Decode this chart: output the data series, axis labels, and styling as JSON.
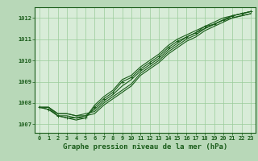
{
  "background_color": "#b8d8b8",
  "plot_bg_color": "#d8ecd8",
  "grid_color": "#99cc99",
  "line_color": "#1a5c1a",
  "xlabel": "Graphe pression niveau de la mer (hPa)",
  "ylabel_ticks": [
    1007,
    1008,
    1009,
    1010,
    1011,
    1012
  ],
  "xlim": [
    -0.5,
    23.5
  ],
  "ylim": [
    1006.6,
    1012.5
  ],
  "series": [
    [
      1007.8,
      1007.8,
      1007.5,
      1007.5,
      1007.4,
      1007.4,
      1007.5,
      1007.9,
      1008.2,
      1008.5,
      1008.8,
      1009.3,
      1009.6,
      1009.9,
      1010.3,
      1010.6,
      1010.9,
      1011.1,
      1011.4,
      1011.6,
      1011.8,
      1012.0,
      1012.1,
      1012.2
    ],
    [
      1007.8,
      1007.8,
      1007.5,
      1007.5,
      1007.4,
      1007.5,
      1007.6,
      1008.0,
      1008.3,
      1008.6,
      1008.9,
      1009.4,
      1009.7,
      1010.0,
      1010.4,
      1010.7,
      1011.0,
      1011.2,
      1011.5,
      1011.7,
      1011.9,
      1012.1,
      1012.2,
      1012.3
    ],
    [
      1007.8,
      1007.8,
      1007.4,
      1007.4,
      1007.3,
      1007.4,
      1007.7,
      1008.1,
      1008.4,
      1008.8,
      1009.1,
      1009.5,
      1009.8,
      1010.1,
      1010.5,
      1010.8,
      1011.1,
      1011.3,
      1011.5,
      1011.7,
      1011.9,
      1012.0,
      1012.1,
      1012.2
    ],
    [
      1007.8,
      1007.7,
      1007.4,
      1007.3,
      1007.3,
      1007.3,
      1007.8,
      1008.2,
      1008.5,
      1009.0,
      1009.2,
      1009.6,
      1009.9,
      1010.2,
      1010.6,
      1010.9,
      1011.1,
      1011.3,
      1011.6,
      1011.7,
      1011.9,
      1012.1,
      1012.2,
      1012.3
    ],
    [
      1007.8,
      1007.7,
      1007.4,
      1007.3,
      1007.2,
      1007.3,
      1007.9,
      1008.3,
      1008.6,
      1009.1,
      1009.3,
      1009.7,
      1010.0,
      1010.3,
      1010.7,
      1011.0,
      1011.2,
      1011.4,
      1011.6,
      1011.8,
      1012.0,
      1012.1,
      1012.2,
      1012.3
    ]
  ],
  "marker_series": 3,
  "xticks": [
    0,
    1,
    2,
    3,
    4,
    5,
    6,
    7,
    8,
    9,
    10,
    11,
    12,
    13,
    14,
    15,
    16,
    17,
    18,
    19,
    20,
    21,
    22,
    23
  ],
  "tick_fontsize": 5.0,
  "label_fontsize": 6.5
}
